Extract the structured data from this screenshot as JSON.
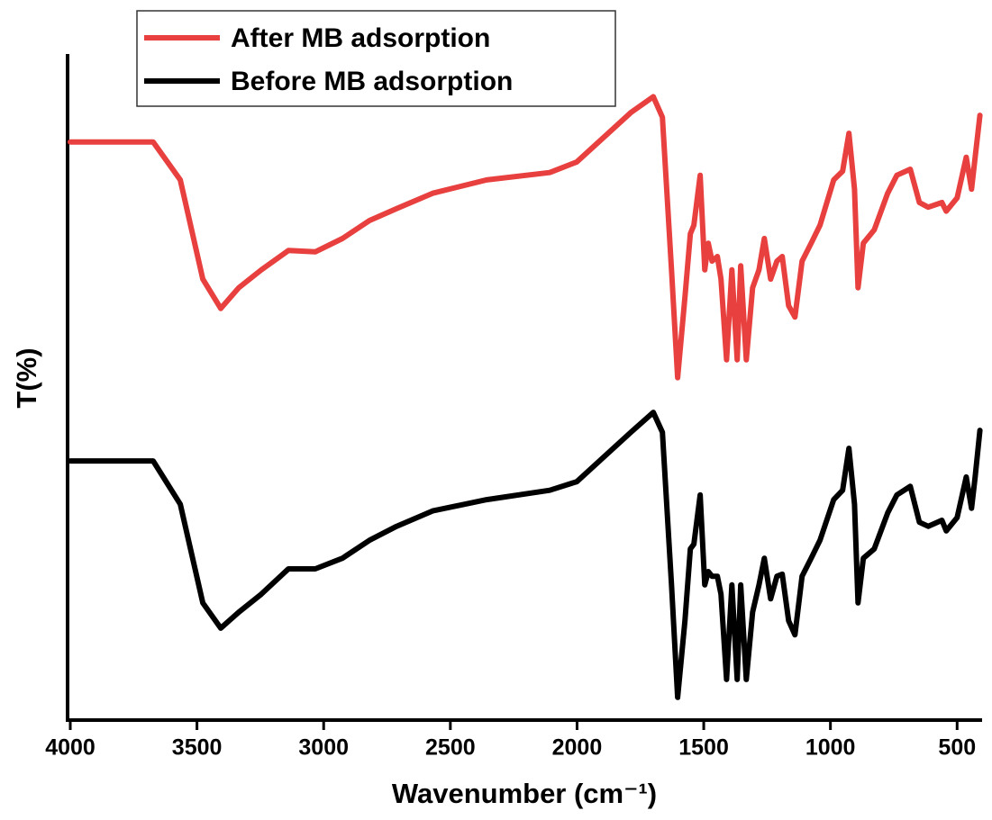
{
  "chart_data": {
    "type": "line",
    "xlabel": "Wavenumber (cm⁻¹)",
    "ylabel": "T(%)",
    "x": [
      4000,
      3673,
      3566,
      3477,
      3406,
      3335,
      3246,
      3139,
      3033,
      2926,
      2819,
      2712,
      2570,
      2357,
      2108,
      2001,
      1788,
      1699,
      1663,
      1627,
      1603,
      1574,
      1553,
      1539,
      1514,
      1496,
      1482,
      1467,
      1446,
      1432,
      1410,
      1389,
      1368,
      1354,
      1332,
      1307,
      1282,
      1261,
      1236,
      1211,
      1190,
      1165,
      1140,
      1112,
      1076,
      1041,
      987,
      952,
      927,
      905,
      891,
      870,
      827,
      774,
      738,
      685,
      649,
      614,
      560,
      543,
      500,
      464,
      443,
      429,
      410
    ],
    "series": [
      {
        "name": "After MB adsorption",
        "color": "#e8403f",
        "values": [
          86.8,
          86.8,
          81.1,
          66.2,
          61.8,
          64.9,
          67.6,
          70.5,
          70.3,
          72.3,
          75,
          76.8,
          79.1,
          81.1,
          82.2,
          83.8,
          91.2,
          93.6,
          90.5,
          67.6,
          51.4,
          63.5,
          73,
          74.3,
          81.8,
          67.6,
          71.6,
          68.9,
          69.6,
          66.2,
          54.1,
          67.6,
          54.1,
          68.2,
          54.1,
          64.9,
          67.6,
          72.3,
          66.2,
          68.9,
          69.6,
          62.2,
          60.5,
          68.9,
          71.6,
          74.3,
          81.1,
          82.4,
          88.1,
          79.7,
          64.9,
          71.6,
          73.6,
          79.1,
          81.8,
          82.7,
          77.7,
          77,
          77.7,
          76.4,
          78.4,
          84.5,
          79.7,
          84.5,
          90.8
        ]
      },
      {
        "name": "Before MB adsorption",
        "color": "#000000",
        "values": [
          38.9,
          38.9,
          32.4,
          17.6,
          13.8,
          16.2,
          18.9,
          22.7,
          22.7,
          24.3,
          27,
          29.1,
          31.4,
          33.1,
          34.5,
          35.8,
          43.2,
          46.2,
          43.2,
          20.3,
          3.4,
          14.9,
          25.7,
          26.4,
          33.8,
          20.3,
          22.3,
          21.6,
          21.6,
          18.9,
          6.1,
          20.3,
          6.1,
          20.3,
          6.1,
          16.2,
          20.3,
          24.3,
          18.2,
          21.6,
          21.9,
          14.9,
          12.8,
          21.6,
          24.3,
          27,
          33.1,
          34.5,
          40.8,
          32.4,
          17.6,
          24.3,
          25.7,
          31.1,
          33.8,
          35.1,
          29.7,
          29.1,
          30,
          28.4,
          30.4,
          36.5,
          31.8,
          36.5,
          43.5
        ]
      }
    ],
    "xlim": [
      4000,
      405
    ],
    "xticks": [
      4000,
      3500,
      3000,
      2500,
      2000,
      1500,
      1000,
      500
    ],
    "ylim": [
      0,
      100
    ],
    "legend": "upper left"
  }
}
